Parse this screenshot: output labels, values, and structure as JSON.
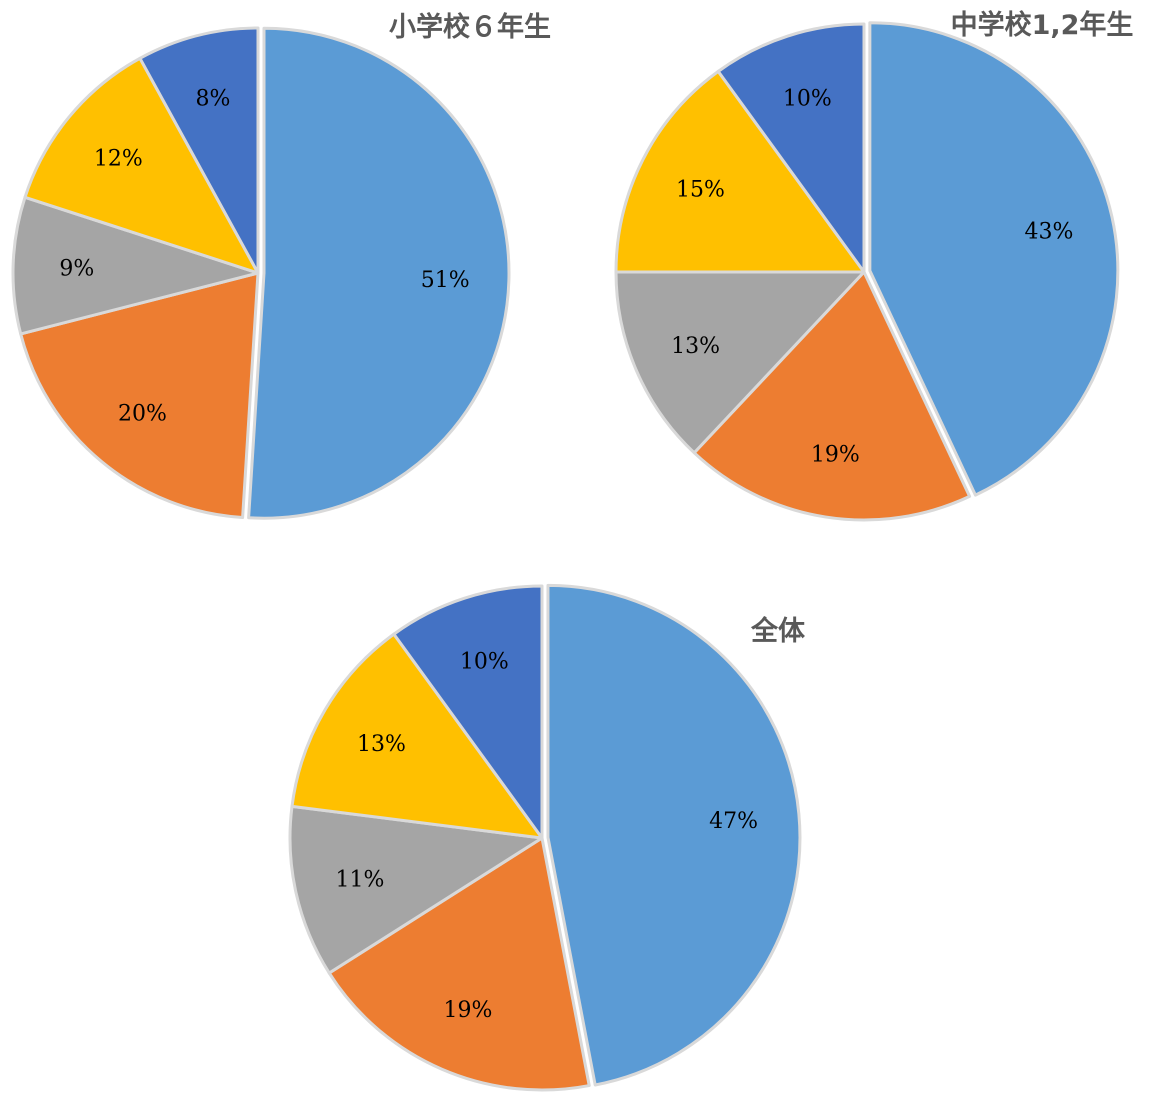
{
  "chart_data": [
    {
      "type": "pie",
      "title": "小学校６年生",
      "values": [
        51,
        20,
        9,
        12,
        8
      ],
      "labels": [
        "51%",
        "20%",
        "9%",
        "12%",
        "8%"
      ],
      "colors": [
        "#5b9bd5",
        "#ed7d31",
        "#a5a5a5",
        "#ffc000",
        "#4472c4"
      ],
      "legend": "none"
    },
    {
      "type": "pie",
      "title": "中学校1,2年生",
      "values": [
        43,
        19,
        13,
        15,
        10
      ],
      "labels": [
        "43%",
        "19%",
        "13%",
        "15%",
        "10%"
      ],
      "colors": [
        "#5b9bd5",
        "#ed7d31",
        "#a5a5a5",
        "#ffc000",
        "#4472c4"
      ],
      "legend": "none"
    },
    {
      "type": "pie",
      "title": "全体",
      "values": [
        47,
        19,
        11,
        13,
        10
      ],
      "labels": [
        "47%",
        "19%",
        "11%",
        "13%",
        "10%"
      ],
      "colors": [
        "#5b9bd5",
        "#ed7d31",
        "#a5a5a5",
        "#ffc000",
        "#4472c4"
      ],
      "legend": "none"
    }
  ]
}
